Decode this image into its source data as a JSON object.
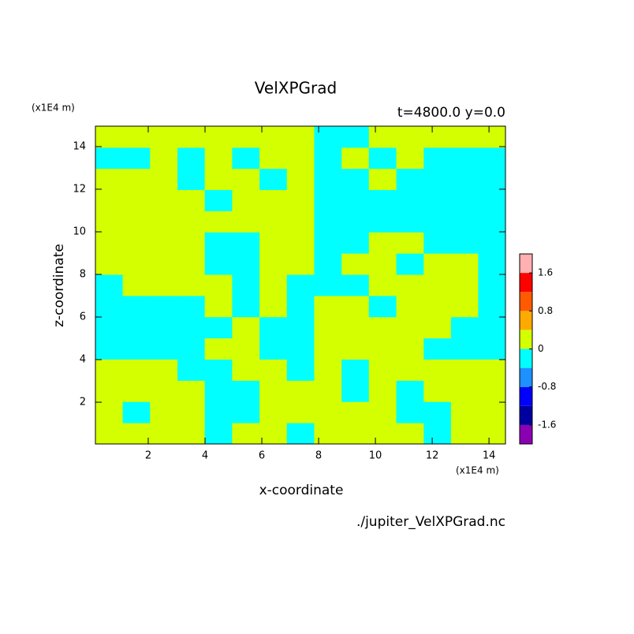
{
  "chart_data": {
    "type": "contour",
    "title": "VelXPGrad",
    "subtitle": "t=4800.0 y=0.0",
    "x_label": "x-coordinate",
    "y_label": "z-coordinate",
    "x_unit": "(x1E4 m)",
    "y_unit": "(x1E4 m)",
    "source": "./jupiter_VelXPGrad.nc",
    "xlim": [
      0.14,
      14.58
    ],
    "ylim": [
      0.04,
      14.96
    ],
    "xticks": [
      2,
      4,
      6,
      8,
      10,
      12,
      14
    ],
    "yticks": [
      2,
      4,
      6,
      8,
      10,
      12,
      14
    ],
    "x": [
      0.62,
      1.58,
      2.55,
      3.51,
      4.47,
      5.44,
      6.4,
      7.36,
      8.33,
      9.29,
      10.25,
      11.22,
      12.18,
      13.14,
      14.1
    ],
    "z": [
      0.54,
      1.53,
      2.53,
      3.52,
      4.52,
      5.51,
      6.51,
      7.5,
      8.5,
      9.49,
      10.49,
      11.48,
      12.48,
      13.47,
      14.46
    ],
    "values": [
      [
        0.2,
        0.2,
        0.2,
        0.2,
        -0.2,
        0.2,
        0.2,
        -0.2,
        0.2,
        0.2,
        0.2,
        0.2,
        -0.2,
        0.2,
        0.2
      ],
      [
        0.2,
        -0.2,
        0.2,
        0.2,
        -0.2,
        -0.2,
        0.2,
        0.2,
        0.2,
        0.2,
        0.2,
        -0.2,
        -0.2,
        0.2,
        0.2
      ],
      [
        0.2,
        0.2,
        0.2,
        0.2,
        -0.2,
        -0.2,
        0.2,
        0.2,
        0.2,
        -0.2,
        0.2,
        -0.2,
        0.2,
        0.2,
        0.2
      ],
      [
        0.2,
        0.2,
        0.2,
        -0.2,
        -0.2,
        0.2,
        0.2,
        -0.2,
        0.2,
        -0.2,
        0.2,
        0.2,
        0.2,
        0.2,
        0.2
      ],
      [
        -0.2,
        -0.2,
        -0.2,
        -0.2,
        0.2,
        0.2,
        -0.2,
        -0.2,
        0.2,
        0.2,
        0.2,
        0.2,
        -0.2,
        -0.2,
        -0.2
      ],
      [
        -0.2,
        -0.2,
        -0.2,
        -0.2,
        -0.2,
        0.2,
        -0.2,
        -0.2,
        0.2,
        0.2,
        0.2,
        0.2,
        0.2,
        -0.2,
        -0.2
      ],
      [
        -0.2,
        -0.2,
        -0.2,
        -0.2,
        0.2,
        -0.2,
        0.2,
        -0.2,
        0.2,
        0.2,
        -0.2,
        0.2,
        0.2,
        0.2,
        -0.2
      ],
      [
        -0.2,
        0.2,
        0.2,
        0.2,
        0.2,
        -0.2,
        0.2,
        -0.2,
        -0.2,
        -0.2,
        0.2,
        0.2,
        0.2,
        0.2,
        -0.2
      ],
      [
        0.2,
        0.2,
        0.2,
        0.2,
        -0.2,
        -0.2,
        0.2,
        0.2,
        -0.2,
        0.2,
        0.2,
        -0.2,
        0.2,
        0.2,
        -0.2
      ],
      [
        0.2,
        0.2,
        0.2,
        0.2,
        -0.2,
        -0.2,
        0.2,
        0.2,
        -0.2,
        -0.2,
        0.2,
        0.2,
        -0.2,
        -0.2,
        -0.2
      ],
      [
        0.2,
        0.2,
        0.2,
        0.2,
        0.2,
        0.2,
        0.2,
        0.2,
        -0.2,
        -0.2,
        -0.2,
        -0.2,
        -0.2,
        -0.2,
        -0.2
      ],
      [
        0.2,
        0.2,
        0.2,
        0.2,
        -0.2,
        0.2,
        0.2,
        0.2,
        -0.2,
        -0.2,
        -0.2,
        -0.2,
        -0.2,
        -0.2,
        -0.2
      ],
      [
        0.2,
        0.2,
        0.2,
        -0.2,
        0.2,
        0.2,
        -0.2,
        0.2,
        -0.2,
        -0.2,
        0.2,
        -0.2,
        -0.2,
        -0.2,
        -0.2
      ],
      [
        -0.2,
        -0.2,
        0.2,
        -0.2,
        0.2,
        -0.2,
        0.2,
        0.2,
        -0.2,
        0.2,
        -0.2,
        0.2,
        -0.2,
        -0.2,
        -0.2
      ],
      [
        0.2,
        0.2,
        0.2,
        0.2,
        0.2,
        0.2,
        0.2,
        0.2,
        -0.2,
        -0.2,
        0.2,
        0.2,
        0.2,
        0.2,
        0.2
      ]
    ],
    "levels": [
      -2,
      -1.6,
      -1.2,
      -0.8,
      -0.4,
      0,
      0.4,
      0.8,
      1.2,
      1.6,
      2
    ],
    "colors": [
      "#8c00b4",
      "#0000a0",
      "#0000ff",
      "#1e90ff",
      "#00ffff",
      "#d4ff00",
      "#ffaa00",
      "#ff5a00",
      "#ff0000",
      "#ffb0b0"
    ],
    "colorbar_ticks": [
      -1.6,
      -0.8,
      0,
      0.8,
      1.6
    ]
  }
}
